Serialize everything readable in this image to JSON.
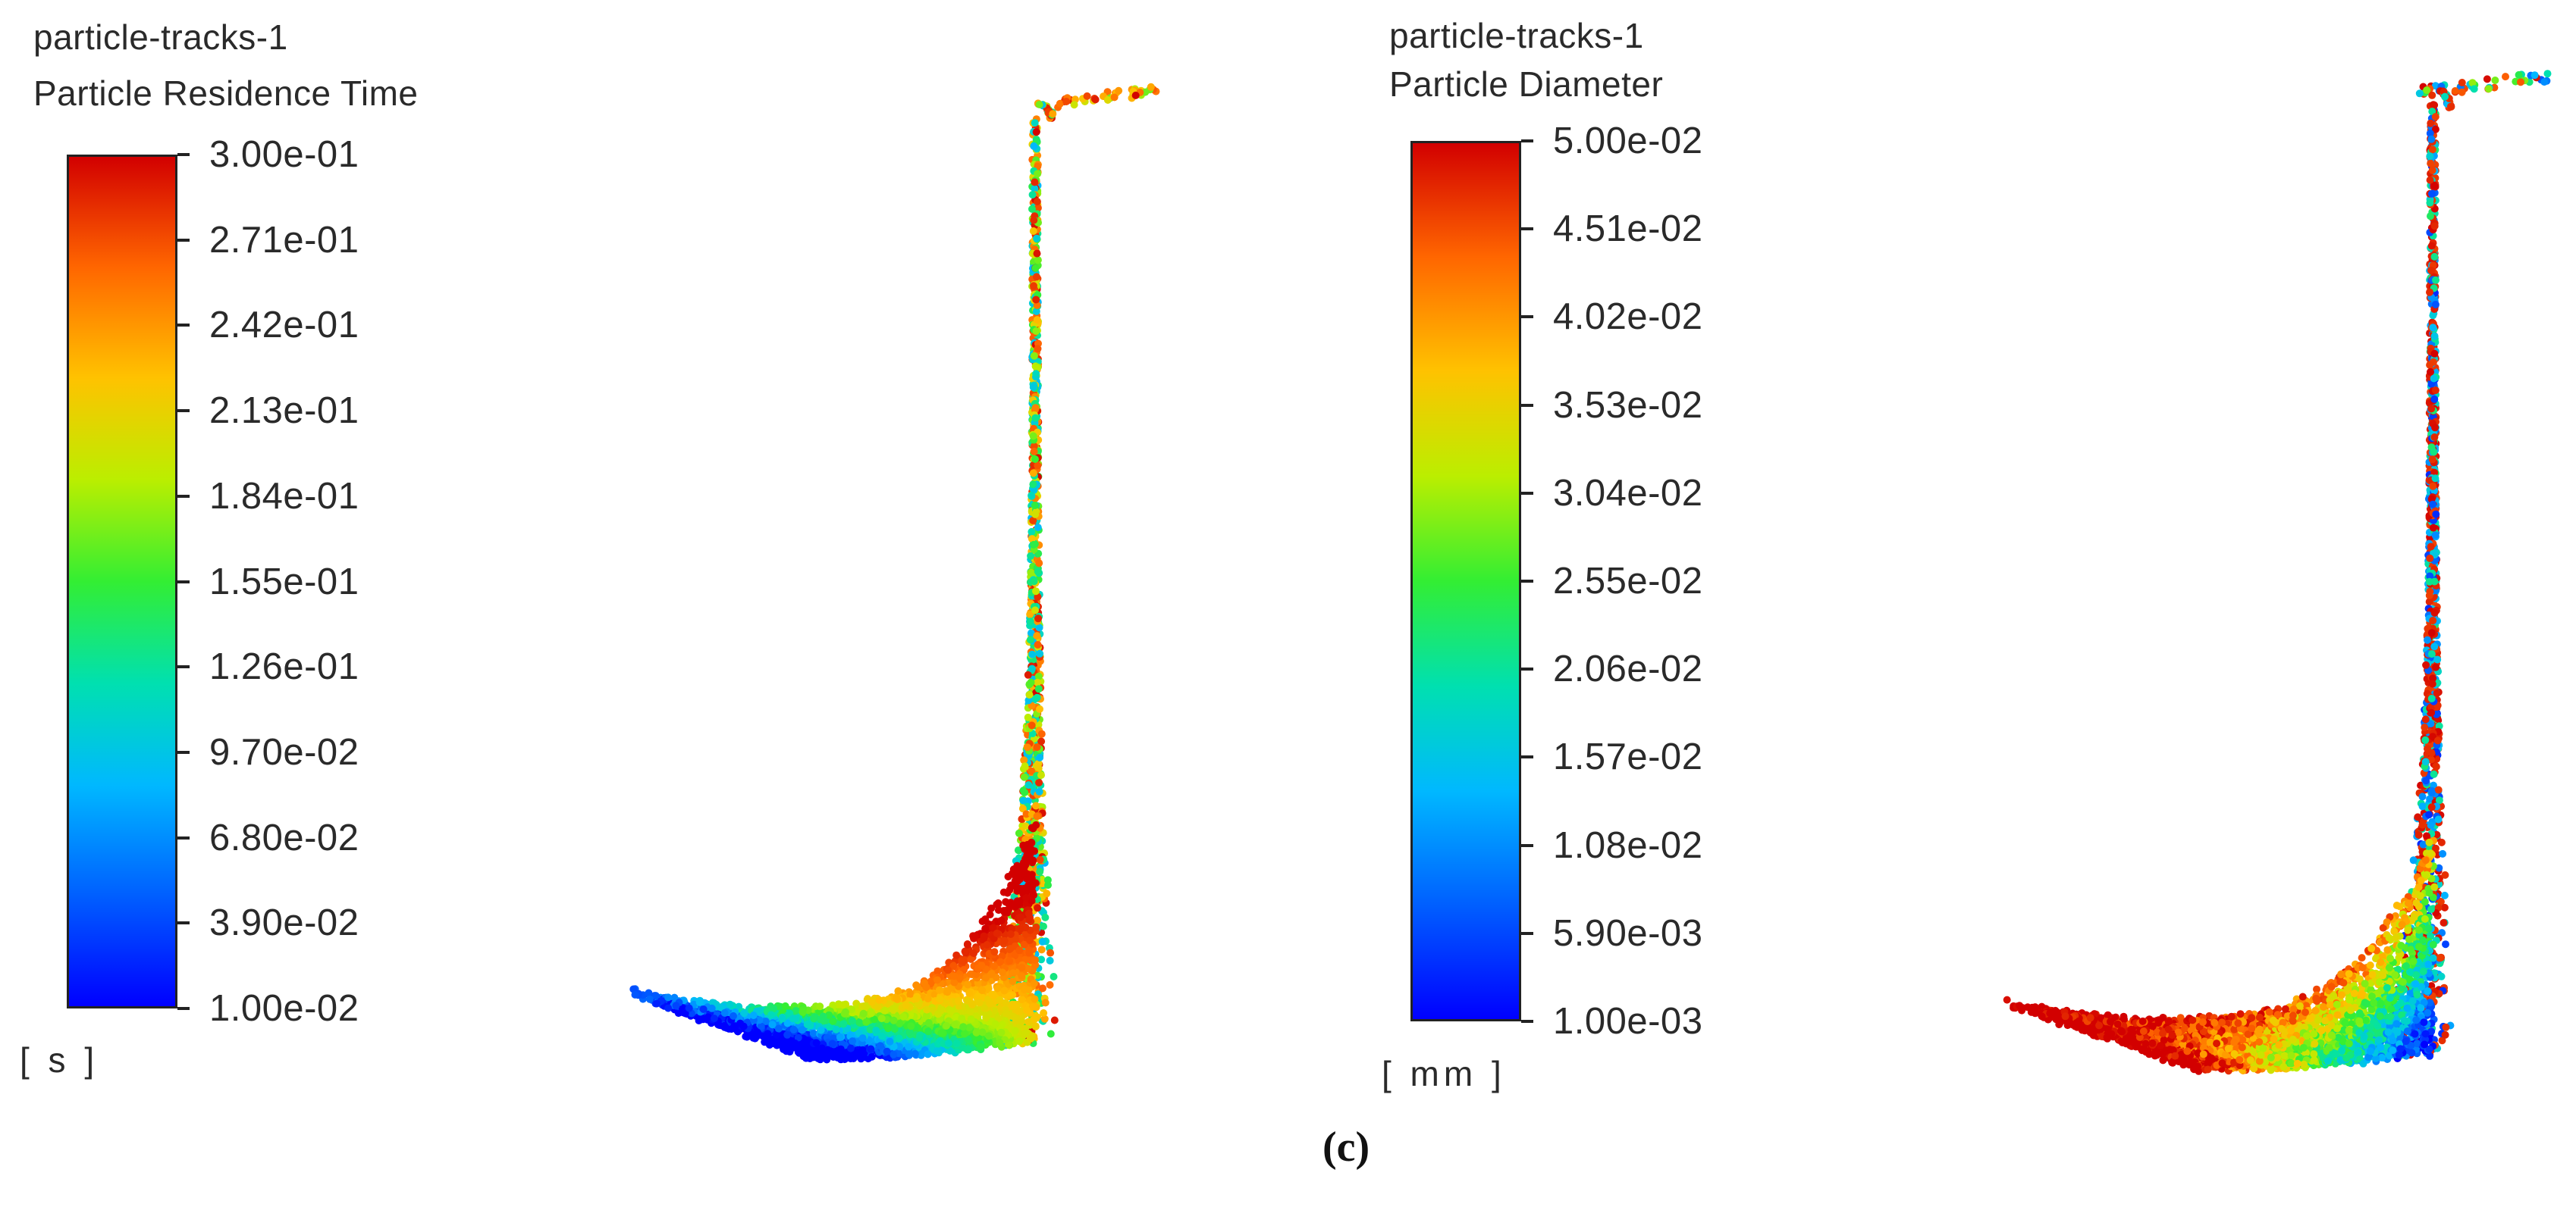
{
  "panels": [
    {
      "id": "left",
      "legend": {
        "name": "particle-tracks-1",
        "variable": "Particle Residence Time",
        "unit": "[ s ]",
        "ticks": [
          "3.00e-01",
          "2.71e-01",
          "2.42e-01",
          "2.13e-01",
          "1.84e-01",
          "1.55e-01",
          "1.26e-01",
          "9.70e-02",
          "6.80e-02",
          "3.90e-02",
          "1.00e-02"
        ]
      }
    },
    {
      "id": "right",
      "legend": {
        "name": "particle-tracks-1",
        "variable": "Particle Diameter",
        "unit": "[ mm ]",
        "ticks": [
          "5.00e-02",
          "4.51e-02",
          "4.02e-02",
          "3.53e-02",
          "3.04e-02",
          "2.55e-02",
          "2.06e-02",
          "1.57e-02",
          "1.08e-02",
          "5.90e-03",
          "1.00e-03"
        ]
      }
    }
  ],
  "caption": "(c)",
  "colormap": [
    "#0000ff",
    "#0066ff",
    "#00b8ff",
    "#00e0b0",
    "#33ee33",
    "#bbee00",
    "#ffc200",
    "#ff6600",
    "#d20000"
  ]
}
